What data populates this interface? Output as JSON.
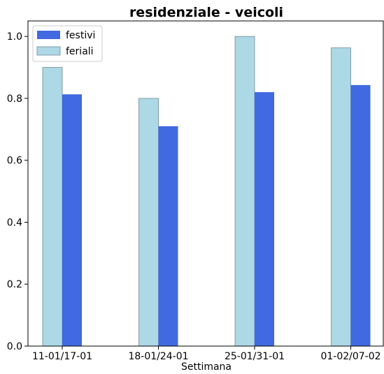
{
  "chart_data": {
    "type": "bar",
    "title": "residenziale - veicoli",
    "xlabel": "Settimana",
    "ylabel": "",
    "categories": [
      "11-01/17-01",
      "18-01/24-01",
      "25-01/31-01",
      "01-02/07-02"
    ],
    "series": [
      {
        "name": "feriali",
        "values": [
          0.9,
          0.8,
          1.0,
          0.963
        ],
        "color": "#add8e6"
      },
      {
        "name": "festivi",
        "values": [
          0.813,
          0.71,
          0.82,
          0.843
        ],
        "color": "#4169e1"
      }
    ],
    "legend_order": [
      "festivi",
      "feriali"
    ],
    "yticks": [
      "0.0",
      "0.2",
      "0.4",
      "0.6",
      "0.8",
      "1.0"
    ],
    "ylim": [
      0,
      1.05
    ],
    "grid": false,
    "legend_position": "top-left"
  }
}
